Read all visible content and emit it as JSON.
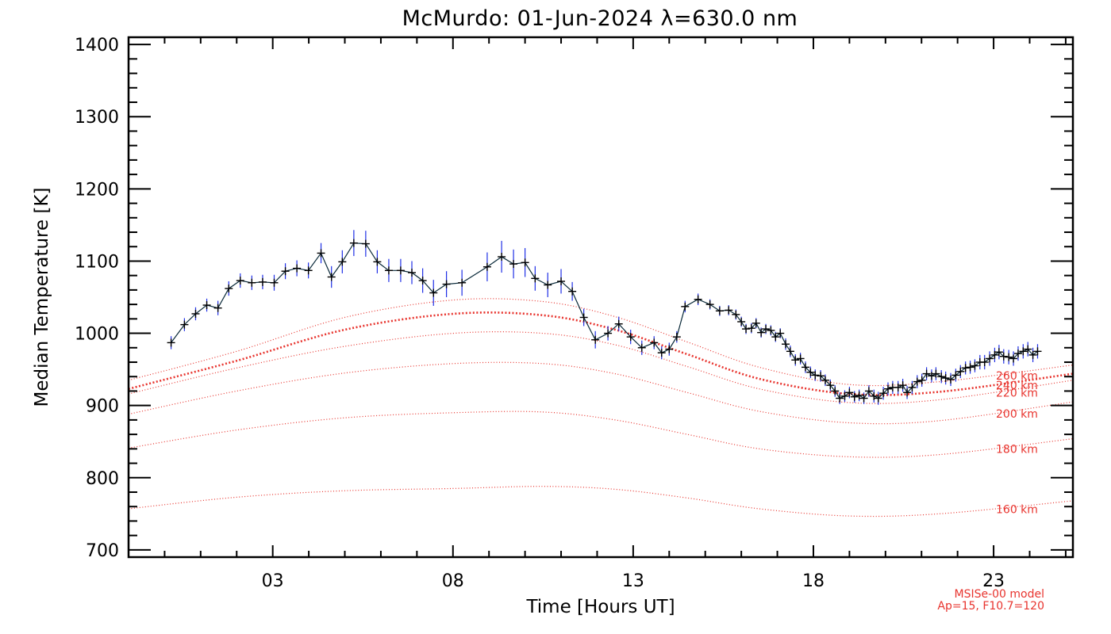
{
  "chart_data": {
    "type": "line",
    "title": "McMurdo: 01-Jun-2024 λ=630.0 nm",
    "xlabel": "Time [Hours UT]",
    "ylabel": "Median Temperature [K]",
    "xlim": [
      -1,
      25.2
    ],
    "ylim": [
      690,
      1410
    ],
    "x_ticks": [
      3,
      8,
      13,
      18,
      23
    ],
    "x_tick_labels": [
      "03",
      "08",
      "13",
      "18",
      "23"
    ],
    "y_ticks": [
      700,
      800,
      900,
      1000,
      1100,
      1200,
      1300,
      1400
    ],
    "y_tick_labels": [
      "700",
      "800",
      "900",
      "1000",
      "1100",
      "1200",
      "1300",
      "1400"
    ],
    "x_minor_step": 1,
    "y_minor_step": 20,
    "grid": false,
    "series": [
      {
        "color": "#1f2fe6",
        "marker": "+",
        "x": [
          0.18,
          0.55,
          0.86,
          1.17,
          1.48,
          1.78,
          2.1,
          2.42,
          2.72,
          3.04,
          3.35,
          3.67,
          3.99,
          4.34,
          4.63,
          4.93,
          5.25,
          5.58,
          5.9,
          6.22,
          6.55,
          6.86,
          7.16,
          7.46,
          7.82,
          8.25,
          8.95,
          9.35,
          9.68,
          10.0,
          10.28,
          10.63,
          11.0,
          11.31,
          11.63,
          11.95,
          12.3,
          12.6,
          12.93,
          13.24,
          13.58,
          13.79,
          14.0,
          14.21,
          14.44,
          14.8,
          15.13,
          15.4,
          15.65,
          15.85,
          16.0,
          16.13,
          16.28,
          16.41,
          16.55,
          16.68,
          16.82,
          16.95,
          17.08,
          17.23,
          17.36,
          17.5,
          17.64,
          17.78,
          17.92,
          18.05,
          18.2,
          18.33,
          18.47,
          18.6,
          18.73,
          18.87,
          19.0,
          19.14,
          19.27,
          19.4,
          19.54,
          19.68,
          19.8,
          19.94,
          20.07,
          20.2,
          20.35,
          20.48,
          20.6,
          20.74,
          20.88,
          21.01,
          21.14,
          21.28,
          21.4,
          21.55,
          21.67,
          21.81,
          21.95,
          22.08,
          22.22,
          22.35,
          22.48,
          22.62,
          22.75,
          22.89,
          23.03,
          23.15,
          23.28,
          23.42,
          23.55,
          23.68,
          23.82,
          23.95,
          24.09,
          24.22
        ],
        "values": [
          987,
          1012,
          1027,
          1039,
          1035,
          1062,
          1073,
          1070,
          1071,
          1070,
          1086,
          1090,
          1087,
          1111,
          1078,
          1099,
          1125,
          1124,
          1099,
          1087,
          1087,
          1084,
          1073,
          1056,
          1068,
          1070,
          1092,
          1106,
          1096,
          1098,
          1076,
          1067,
          1072,
          1058,
          1022,
          991,
          1000,
          1013,
          995,
          980,
          987,
          973,
          978,
          995,
          1037,
          1047,
          1040,
          1031,
          1032,
          1026,
          1016,
          1006,
          1007,
          1014,
          1001,
          1006,
          1004,
          995,
          1000,
          985,
          975,
          963,
          965,
          953,
          946,
          942,
          941,
          935,
          928,
          920,
          910,
          913,
          918,
          912,
          914,
          910,
          920,
          913,
          910,
          917,
          923,
          925,
          925,
          928,
          918,
          925,
          933,
          935,
          944,
          941,
          944,
          940,
          938,
          936,
          942,
          947,
          952,
          953,
          955,
          960,
          960,
          965,
          970,
          974,
          968,
          967,
          965,
          972,
          975,
          978,
          970,
          975
        ],
        "errors": [
          9,
          9,
          9,
          9,
          10,
          10,
          10,
          10,
          10,
          11,
          11,
          11,
          11,
          14,
          15,
          16,
          18,
          18,
          16,
          16,
          16,
          16,
          17,
          18,
          18,
          18,
          20,
          22,
          20,
          20,
          17,
          17,
          17,
          13,
          12,
          12,
          10,
          10,
          10,
          10,
          9,
          9,
          9,
          8,
          8,
          8,
          7,
          7,
          7,
          7,
          7,
          7,
          7,
          7,
          7,
          7,
          7,
          7,
          7,
          8,
          8,
          8,
          8,
          8,
          8,
          8,
          8,
          8,
          8,
          8,
          8,
          8,
          8,
          8,
          8,
          8,
          8,
          9,
          9,
          9,
          9,
          9,
          9,
          9,
          9,
          9,
          9,
          9,
          9,
          9,
          9,
          9,
          9,
          9,
          9,
          9,
          9,
          9,
          9,
          10,
          10,
          10,
          10,
          10,
          10,
          10,
          10,
          10,
          10,
          10,
          10,
          10
        ]
      }
    ],
    "model_curves": [
      {
        "label": "160 km",
        "bold": false,
        "x": [
          -1,
          2,
          5,
          8,
          10.5,
          12.5,
          14.5,
          16.5,
          19,
          21.5,
          25.2
        ],
        "values": [
          757,
          773,
          782,
          785,
          788,
          784,
          772,
          757,
          747,
          750,
          768
        ]
      },
      {
        "label": "180 km",
        "bold": false,
        "x": [
          -1,
          2,
          5,
          8,
          10.5,
          12.5,
          14.5,
          16.5,
          19,
          21.5,
          25.2
        ],
        "values": [
          841,
          866,
          883,
          890,
          891,
          880,
          860,
          840,
          829,
          832,
          854
        ]
      },
      {
        "label": "200 km",
        "bold": false,
        "x": [
          -1,
          2,
          5,
          8,
          10.5,
          12.5,
          14.5,
          16.5,
          19,
          21.5,
          25.2
        ],
        "values": [
          888,
          920,
          945,
          958,
          958,
          944,
          918,
          892,
          876,
          879,
          905
        ]
      },
      {
        "label": "220 km",
        "bold": false,
        "x": [
          -1,
          2,
          5,
          8,
          10.5,
          12.5,
          14.5,
          16.5,
          19,
          21.5,
          25.2
        ],
        "values": [
          916,
          952,
          982,
          1000,
          1000,
          984,
          954,
          923,
          904,
          908,
          935
        ]
      },
      {
        "label": "240 km",
        "bold": true,
        "x": [
          -1,
          2,
          5,
          8,
          10.5,
          12.5,
          14.5,
          16.5,
          19,
          21.5,
          25.2
        ],
        "values": [
          923,
          962,
          1005,
          1027,
          1025,
          1005,
          971,
          937,
          916,
          919,
          944
        ]
      },
      {
        "label": "260 km",
        "bold": false,
        "x": [
          -1,
          2,
          5,
          8,
          10.5,
          12.5,
          14.5,
          16.5,
          19,
          21.5,
          25.2
        ],
        "values": [
          935,
          975,
          1022,
          1046,
          1044,
          1023,
          988,
          953,
          929,
          933,
          956
        ]
      }
    ],
    "annotations": [
      "MSISe-00 model",
      "Ap=15, F10.7=120"
    ],
    "colors": {
      "data_error": "#1f2fe6",
      "data_line": "#0a2a3a",
      "model": "#e8342e"
    }
  }
}
